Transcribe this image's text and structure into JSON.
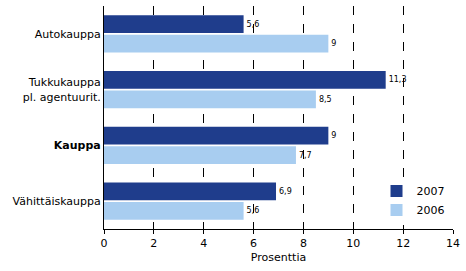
{
  "chart_data": {
    "type": "bar",
    "orientation": "horizontal",
    "categories": [
      "Autokauppa",
      "Tukkukauppa pl. agentuurit.",
      "Kauppa",
      "Vähittäiskauppa"
    ],
    "series": [
      {
        "name": "2007",
        "color": "#1f3d8c",
        "values": [
          5.6,
          11.3,
          9,
          6.9
        ],
        "value_labels": [
          "5,6",
          "11,3",
          "9",
          "6,9"
        ]
      },
      {
        "name": "2006",
        "color": "#a8cdf0",
        "values": [
          9,
          8.5,
          7.7,
          5.6
        ],
        "value_labels": [
          "9",
          "8,5",
          "7,7",
          "5,6"
        ]
      }
    ],
    "xlabel": "Prosenttia",
    "xlim": [
      0,
      14
    ],
    "xticks": [
      0,
      2,
      4,
      6,
      8,
      10,
      12,
      14
    ],
    "grid": true,
    "legend": "bottom right",
    "data_labels": true
  }
}
